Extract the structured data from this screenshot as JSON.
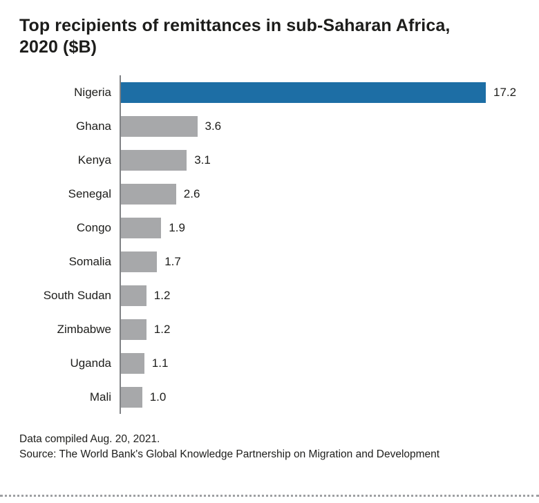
{
  "title": "Top recipients of remittances in sub-Saharan Africa, 2020 ($B)",
  "footer": {
    "line1": "Data compiled Aug. 20, 2021.",
    "line2": "Source: The World Bank's Global Knowledge Partnership on Migration and Development"
  },
  "colors": {
    "highlight_bar": "#1d6ea5",
    "default_bar": "#a7a8aa",
    "axis": "#808285",
    "text": "#1d1d1b"
  },
  "chart_data": {
    "type": "bar",
    "orientation": "horizontal",
    "title": "Top recipients of remittances in sub-Saharan Africa, 2020 ($B)",
    "xlabel": "",
    "ylabel": "",
    "categories": [
      "Nigeria",
      "Ghana",
      "Kenya",
      "Senegal",
      "Congo",
      "Somalia",
      "South Sudan",
      "Zimbabwe",
      "Uganda",
      "Mali"
    ],
    "values": [
      17.2,
      3.6,
      3.1,
      2.6,
      1.9,
      1.7,
      1.2,
      1.2,
      1.1,
      1.0
    ],
    "value_labels": [
      "17.2",
      "3.6",
      "3.1",
      "2.6",
      "1.9",
      "1.7",
      "1.2",
      "1.2",
      "1.1",
      "1.0"
    ],
    "xlim": [
      0,
      17.2
    ],
    "highlight_index": 0,
    "grid": false,
    "legend": false
  }
}
